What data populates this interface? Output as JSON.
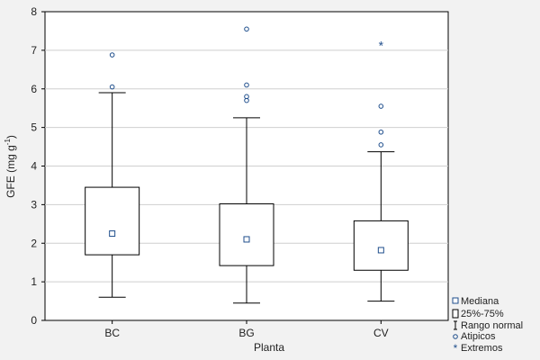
{
  "chart_data": {
    "type": "boxplot",
    "xlabel": "Planta",
    "ylabel": "GFE (mg g",
    "ylabel_sup": "-1",
    "ylabel_close": ")",
    "ylim": [
      0,
      8
    ],
    "yticks": [
      0,
      1,
      2,
      3,
      4,
      5,
      6,
      7,
      8
    ],
    "grid": true,
    "legend_position": "bottom-right",
    "categories": [
      "BC",
      "BG",
      "CV"
    ],
    "boxes": [
      {
        "category": "BC",
        "median": 2.25,
        "q1": 1.7,
        "q3": 3.45,
        "whisker_low": 0.6,
        "whisker_high": 5.9,
        "outliers": [
          6.05,
          6.88
        ],
        "extremes": []
      },
      {
        "category": "BG",
        "median": 2.1,
        "q1": 1.42,
        "q3": 3.02,
        "whisker_low": 0.45,
        "whisker_high": 5.25,
        "outliers": [
          5.7,
          5.8,
          6.1,
          7.55
        ],
        "extremes": []
      },
      {
        "category": "CV",
        "median": 1.82,
        "q1": 1.3,
        "q3": 2.58,
        "whisker_low": 0.5,
        "whisker_high": 4.37,
        "outliers": [
          4.55,
          4.88,
          5.55
        ],
        "extremes": [
          7.15
        ]
      }
    ],
    "legend": [
      "Mediana",
      "25%-75%",
      "Rango normal",
      "Atipicos",
      "Extremos"
    ]
  },
  "colors": {
    "background": "#f2f2f2",
    "plot_bg": "#ffffff",
    "grid": "#cfcfcf",
    "box": "#000000",
    "outlier": "#1f4e8c"
  }
}
